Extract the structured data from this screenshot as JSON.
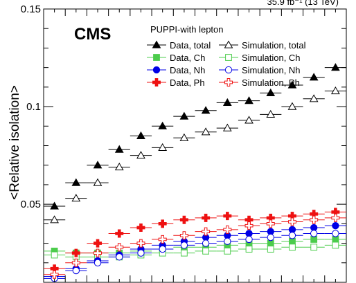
{
  "chart_data": {
    "type": "scatter",
    "title": "",
    "cms_label": "CMS",
    "lumi_label": "35.9 fb⁻¹ (13 TeV)",
    "ylabel": "<Relative isolation>",
    "xlabel": "",
    "ylim": [
      0.01,
      0.15
    ],
    "yticks": [
      "0.05",
      "0.1",
      "0.15"
    ],
    "ytick_values": [
      0.05,
      0.1,
      0.15
    ],
    "grid": false,
    "legend": {
      "title": "PUPPI-with lepton",
      "placement": "top-right"
    },
    "x": [
      1,
      2,
      3,
      4,
      5,
      6,
      7,
      8,
      9,
      10,
      11,
      12,
      13,
      14
    ],
    "xlim": [
      0.5,
      14.5
    ],
    "series": [
      {
        "name": "Data, total",
        "marker": "triangle-filled",
        "color": "#000000",
        "values": [
          0.049,
          0.061,
          0.07,
          0.078,
          0.085,
          0.09,
          0.095,
          0.098,
          0.102,
          0.103,
          0.107,
          0.111,
          0.115,
          0.12
        ]
      },
      {
        "name": "Simulation, total",
        "marker": "triangle-open",
        "color": "#000000",
        "values": [
          0.042,
          0.053,
          0.061,
          0.069,
          0.075,
          0.079,
          0.084,
          0.087,
          0.089,
          0.093,
          0.096,
          0.1,
          0.104,
          0.108
        ]
      },
      {
        "name": "Data, Ch",
        "marker": "square-filled",
        "color": "#4ccc4c",
        "values": [
          0.026,
          0.025,
          0.025,
          0.025,
          0.026,
          0.027,
          0.028,
          0.028,
          0.029,
          0.03,
          0.03,
          0.031,
          0.032,
          0.032
        ]
      },
      {
        "name": "Simulation, Ch",
        "marker": "square-open",
        "color": "#4ccc4c",
        "values": [
          0.024,
          0.023,
          0.023,
          0.023,
          0.024,
          0.025,
          0.025,
          0.026,
          0.026,
          0.027,
          0.027,
          0.028,
          0.028,
          0.029
        ]
      },
      {
        "name": "Data, Nh",
        "marker": "circle-filled",
        "color": "#0000e6",
        "values": [
          0.013,
          0.017,
          0.021,
          0.024,
          0.027,
          0.029,
          0.031,
          0.033,
          0.034,
          0.035,
          0.036,
          0.037,
          0.038,
          0.039
        ]
      },
      {
        "name": "Simulation, Nh",
        "marker": "circle-open",
        "color": "#0000e6",
        "values": [
          0.012,
          0.016,
          0.02,
          0.023,
          0.025,
          0.027,
          0.029,
          0.03,
          0.031,
          0.032,
          0.033,
          0.034,
          0.035,
          0.035
        ]
      },
      {
        "name": "Data, Ph",
        "marker": "cross-filled",
        "color": "#ee1111",
        "values": [
          0.017,
          0.025,
          0.03,
          0.035,
          0.038,
          0.04,
          0.042,
          0.043,
          0.044,
          0.042,
          0.043,
          0.044,
          0.045,
          0.046
        ]
      },
      {
        "name": "Simulation, Ph",
        "marker": "cross-open",
        "color": "#ee1111",
        "values": [
          0.014,
          0.02,
          0.025,
          0.028,
          0.03,
          0.032,
          0.034,
          0.036,
          0.037,
          0.039,
          0.04,
          0.041,
          0.042,
          0.043
        ]
      }
    ]
  }
}
